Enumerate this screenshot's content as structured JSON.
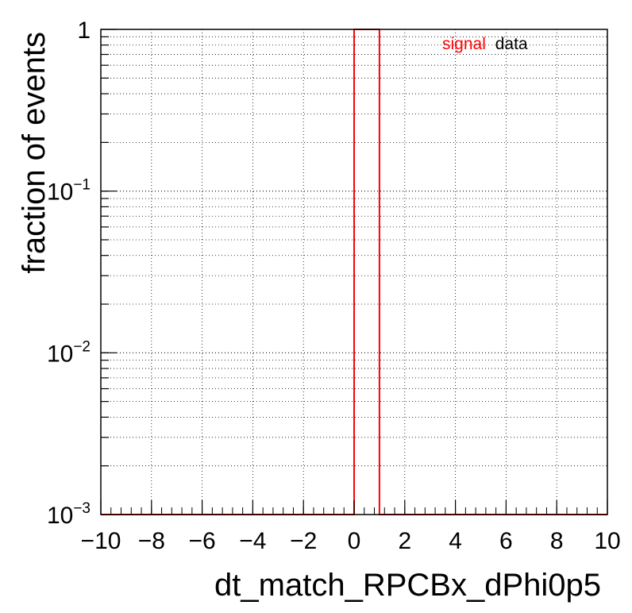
{
  "chart_data": {
    "type": "histogram",
    "xlabel": "dt_match_RPCBx_dPhi0p5",
    "ylabel": "fraction of events",
    "xlim": [
      -10,
      10
    ],
    "ylim": [
      0.001,
      1
    ],
    "yscale": "log",
    "grid": true,
    "x_ticks": [
      "−10",
      "−8",
      "−6",
      "−4",
      "−2",
      "0",
      "2",
      "4",
      "6",
      "8",
      "10"
    ],
    "x_tick_values": [
      -10,
      -8,
      -6,
      -4,
      -2,
      0,
      2,
      4,
      6,
      8,
      10
    ],
    "y_ticks": [
      {
        "value": 1,
        "base": "1",
        "exp": ""
      },
      {
        "value": 0.1,
        "base": "10",
        "exp": "−1"
      },
      {
        "value": 0.01,
        "base": "10",
        "exp": "−2"
      },
      {
        "value": 0.001,
        "base": "10",
        "exp": "−3"
      }
    ],
    "legend": {
      "placement": "top-right",
      "entries": [
        {
          "label": "signal",
          "color": "#ff0000"
        },
        {
          "label": "data",
          "color": "#000000"
        }
      ]
    },
    "series": [
      {
        "name": "signal",
        "color": "#ff0000",
        "bins": [
          {
            "x_low": 0,
            "x_high": 1,
            "value": 1
          }
        ]
      }
    ]
  }
}
